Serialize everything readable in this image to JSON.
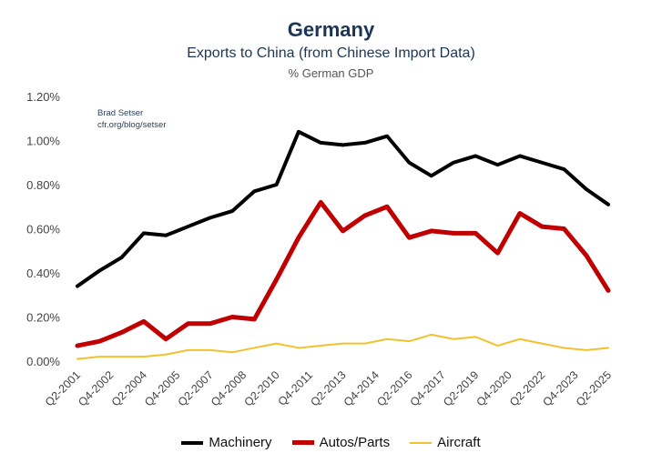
{
  "chart_data": {
    "type": "line",
    "title": "Germany",
    "subtitle": "Exports to China (from Chinese Import Data)",
    "ylabel": "% German GDP",
    "credit": [
      "Brad Setser",
      "cfr.org/blog/setser"
    ],
    "ylim": [
      0,
      1.2
    ],
    "yticks": [
      "0.00%",
      "0.20%",
      "0.40%",
      "0.60%",
      "0.80%",
      "1.00%",
      "1.20%"
    ],
    "xticks": [
      "Q2-2001",
      "Q4-2002",
      "Q2-2004",
      "Q4-2005",
      "Q2-2007",
      "Q4-2008",
      "Q2-2010",
      "Q4-2011",
      "Q2-2013",
      "Q4-2014",
      "Q2-2016",
      "Q4-2017",
      "Q2-2019",
      "Q4-2020",
      "Q2-2022",
      "Q4-2023",
      "Q2-2025"
    ],
    "x_quarter_index": [
      0,
      4,
      8,
      12,
      16,
      20,
      24,
      28,
      32,
      36,
      40,
      44,
      48,
      52,
      56,
      60,
      64,
      68,
      72,
      76,
      80,
      84,
      88,
      92,
      96
    ],
    "grid": false,
    "legend_position": "bottom",
    "series": [
      {
        "name": "Machinery",
        "color": "#000000",
        "values": [
          0.34,
          0.41,
          0.47,
          0.58,
          0.57,
          0.61,
          0.65,
          0.68,
          0.77,
          0.8,
          1.04,
          0.99,
          0.98,
          0.99,
          1.02,
          0.9,
          0.84,
          0.9,
          0.93,
          0.89,
          0.93,
          0.9,
          0.87,
          0.78,
          0.71
        ]
      },
      {
        "name": "Autos/Parts",
        "color": "#c00000",
        "values": [
          0.07,
          0.09,
          0.13,
          0.18,
          0.1,
          0.17,
          0.17,
          0.2,
          0.19,
          0.37,
          0.56,
          0.72,
          0.59,
          0.66,
          0.7,
          0.56,
          0.59,
          0.58,
          0.58,
          0.49,
          0.67,
          0.61,
          0.6,
          0.48,
          0.32
        ]
      },
      {
        "name": "Aircraft",
        "color": "#f2c12e",
        "values": [
          0.01,
          0.02,
          0.02,
          0.02,
          0.03,
          0.05,
          0.05,
          0.04,
          0.06,
          0.08,
          0.06,
          0.07,
          0.08,
          0.08,
          0.1,
          0.09,
          0.12,
          0.1,
          0.11,
          0.07,
          0.1,
          0.08,
          0.06,
          0.05,
          0.06
        ]
      }
    ]
  }
}
